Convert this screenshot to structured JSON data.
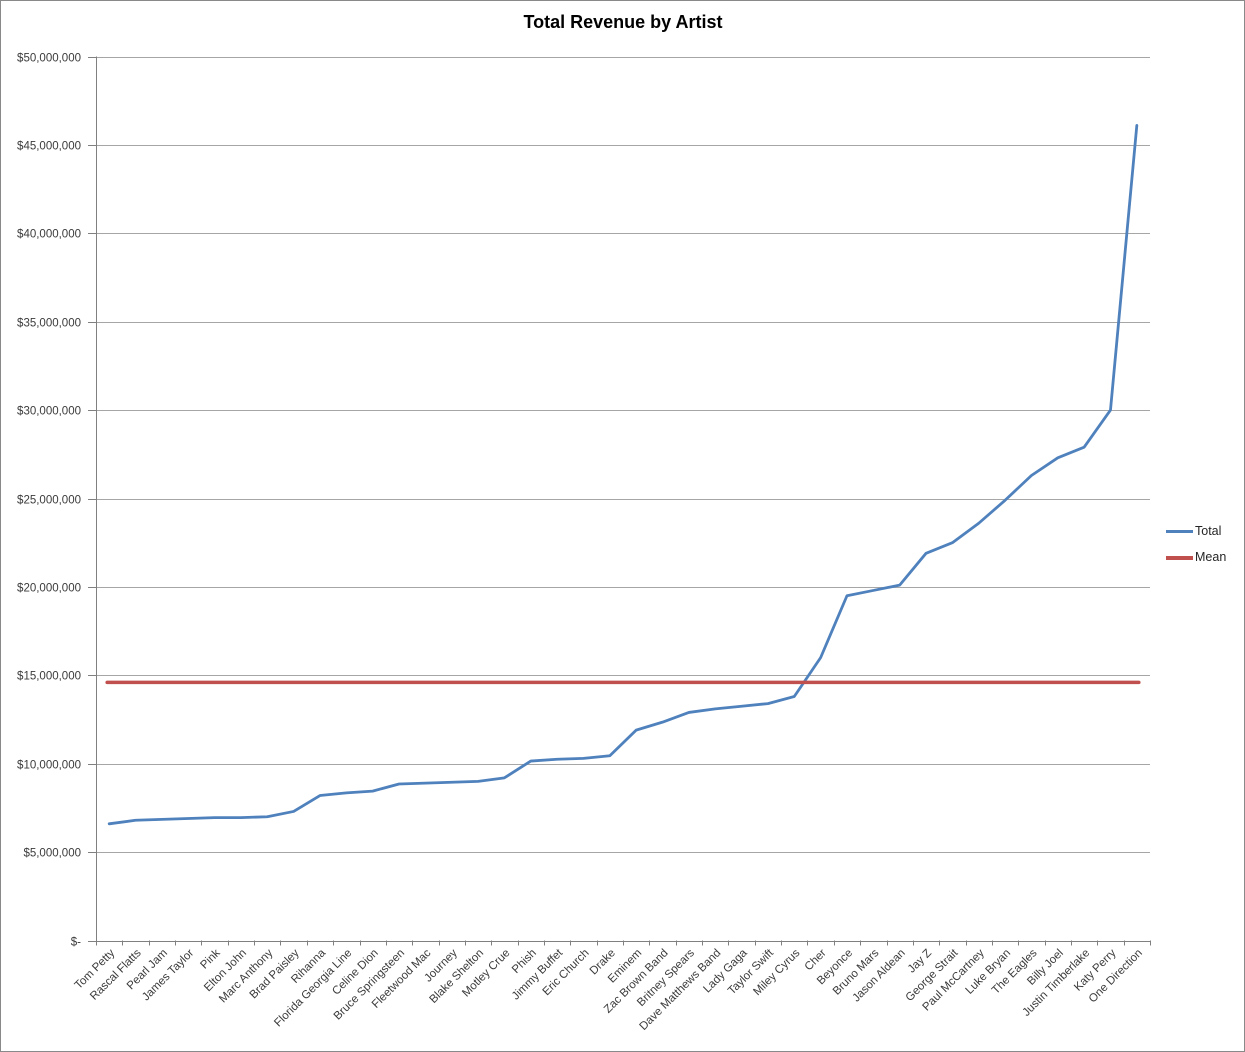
{
  "window": {
    "background": "#ffffff",
    "border_color": "#898989"
  },
  "legend": {
    "position": "right",
    "items": [
      {
        "label": "Total",
        "color": "#4F81BD"
      },
      {
        "label": "Mean",
        "color": "#C0504D"
      }
    ]
  },
  "colors": {
    "total_line": "#4F81BD",
    "mean_line": "#C0504D",
    "gridline": "#A6A6A6",
    "axis": "#808080",
    "tick_label": "#3B3B3B"
  },
  "chart_data": {
    "type": "line",
    "title": "Total Revenue by Artist",
    "xlabel": "",
    "ylabel": "",
    "grid": true,
    "legend_position": "right",
    "ylim": [
      0,
      50000000
    ],
    "y_tick_interval": 5000000,
    "y_tick_labels": [
      "$-",
      "$5,000,000",
      "$10,000,000",
      "$15,000,000",
      "$20,000,000",
      "$25,000,000",
      "$30,000,000",
      "$35,000,000",
      "$40,000,000",
      "$45,000,000",
      "$50,000,000"
    ],
    "categories": [
      "Tom Petty",
      "Rascal Flatts",
      "Pearl Jam",
      "James Taylor",
      "Pink",
      "Elton John",
      "Marc Anthony",
      "Brad Paisley",
      "Rihanna",
      "Florida Georgia Line",
      "Celine Dion",
      "Bruce Springsteen",
      "Fleetwood Mac",
      "Journey",
      "Blake Shelton",
      "Motley Crue",
      "Phish",
      "Jimmy Buffet",
      "Eric Church",
      "Drake",
      "Eminem",
      "Zac Brown Band",
      "Britney Spears",
      "Dave Matthews Band",
      "Lady Gaga",
      "Taylor Swift",
      "Miley Cyrus",
      "Cher",
      "Beyonce",
      "Bruno Mars",
      "Jason Aldean",
      "Jay Z",
      "George Strait",
      "Paul McCartney",
      "Luke Bryan",
      "The Eagles",
      "Billy Joel",
      "Justin Timberlake",
      "Katy Perry",
      "One Direction"
    ],
    "series": [
      {
        "name": "Total",
        "type": "line",
        "color": "#4F81BD",
        "values": [
          6600000,
          6800000,
          6850000,
          6900000,
          6950000,
          6950000,
          7000000,
          7300000,
          8200000,
          8350000,
          8450000,
          8850000,
          8900000,
          8950000,
          9000000,
          9200000,
          10150000,
          10250000,
          10300000,
          10450000,
          11900000,
          12350000,
          12900000,
          13100000,
          13250000,
          13400000,
          13800000,
          16000000,
          19500000,
          19800000,
          20100000,
          21900000,
          22500000,
          23600000,
          24900000,
          26300000,
          27300000,
          27900000,
          30000000,
          46100000
        ]
      },
      {
        "name": "Mean",
        "type": "constant-line",
        "color": "#C0504D",
        "value": 14600000
      }
    ]
  }
}
